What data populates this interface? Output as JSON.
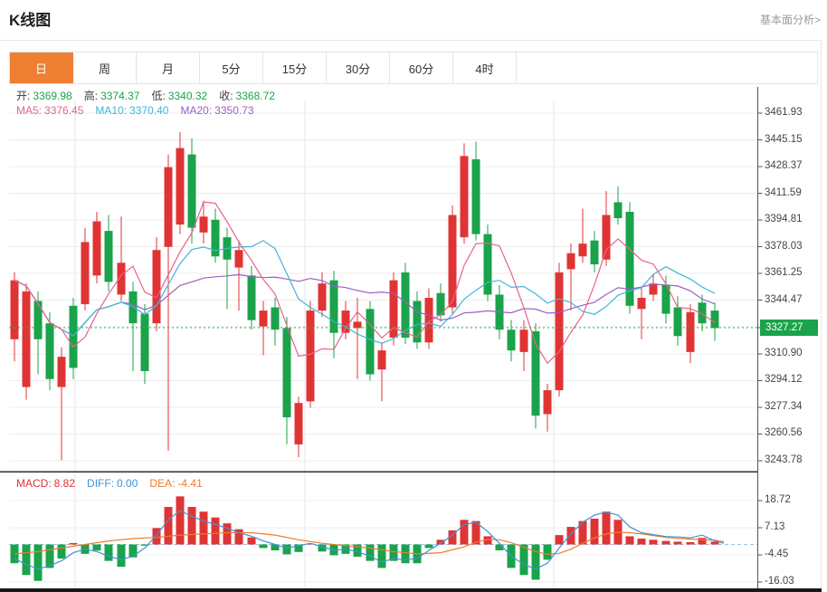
{
  "header": {
    "title": "K线图",
    "link": "基本面分析>"
  },
  "tabs": {
    "items": [
      "日",
      "周",
      "月",
      "5分",
      "15分",
      "30分",
      "60分",
      "4时"
    ],
    "active_index": 0
  },
  "ohlc": {
    "items": [
      {
        "label": "开:",
        "value": "3369.98"
      },
      {
        "label": "高:",
        "value": "3374.37"
      },
      {
        "label": "低:",
        "value": "3340.32"
      },
      {
        "label": "收:",
        "value": "3368.72"
      }
    ]
  },
  "ma": {
    "items": [
      {
        "label": "MA5:",
        "value": "3376.45",
        "color": "#e5638b"
      },
      {
        "label": "MA10:",
        "value": "3370.40",
        "color": "#3fb6d8"
      },
      {
        "label": "MA20:",
        "value": "3350.73",
        "color": "#9c5fc4"
      }
    ]
  },
  "macd_header": {
    "items": [
      {
        "label": "MACD:",
        "value": "8.82",
        "color": "#e03434"
      },
      {
        "label": "DIFF:",
        "value": "0.00",
        "color": "#4191d9"
      },
      {
        "label": "DEA:",
        "value": "-4.41",
        "color": "#ef7c2a"
      }
    ]
  },
  "current_price": "3327.27",
  "chart_data": {
    "type": "candlestick",
    "title": "K线图 daily candles with MA5/MA10/MA20 overlays and MACD panel",
    "price_axis": {
      "max": 3461.93,
      "min": 3243.78,
      "step": 16.78,
      "labels": [
        "3461.93",
        "3445.15",
        "3428.37",
        "3411.59",
        "3394.81",
        "3378.03",
        "3361.25",
        "3344.47",
        "3310.90",
        "3294.12",
        "3277.34",
        "3260.56",
        "3243.78"
      ]
    },
    "current_price": 3327.27,
    "candles": [
      [
        16,
        3357,
        3320,
        3362,
        3306,
        "r"
      ],
      [
        29,
        3350,
        3290,
        3355,
        3282,
        "r"
      ],
      [
        42,
        3344,
        3320,
        3350,
        3298,
        "g"
      ],
      [
        55,
        3330,
        3295,
        3337,
        3288,
        "g"
      ],
      [
        68,
        3309,
        3290,
        3315,
        3244,
        "r"
      ],
      [
        81,
        3341,
        3302,
        3346,
        3295,
        "g"
      ],
      [
        94,
        3381,
        3342,
        3390,
        3338,
        "r"
      ],
      [
        107,
        3394,
        3360,
        3400,
        3355,
        "r"
      ],
      [
        120,
        3388,
        3356,
        3398,
        3350,
        "g"
      ],
      [
        134,
        3368,
        3348,
        3397,
        3344,
        "r"
      ],
      [
        147,
        3350,
        3330,
        3356,
        3300,
        "g"
      ],
      [
        160,
        3336,
        3300,
        3342,
        3292,
        "g"
      ],
      [
        173,
        3376,
        3330,
        3384,
        3325,
        "r"
      ],
      [
        186,
        3428,
        3378,
        3436,
        3250,
        "r"
      ],
      [
        199,
        3440,
        3392,
        3450,
        3386,
        "r"
      ],
      [
        212,
        3436,
        3390,
        3446,
        3380,
        "g"
      ],
      [
        225,
        3397,
        3387,
        3407,
        3380,
        "r"
      ],
      [
        238,
        3395,
        3372,
        3402,
        3368,
        "g"
      ],
      [
        251,
        3384,
        3370,
        3390,
        3339,
        "g"
      ],
      [
        264,
        3376,
        3365,
        3382,
        3338,
        "r"
      ],
      [
        278,
        3360,
        3332,
        3366,
        3326,
        "g"
      ],
      [
        291,
        3338,
        3328,
        3344,
        3310,
        "r"
      ],
      [
        304,
        3340,
        3326,
        3346,
        3316,
        "g"
      ],
      [
        317,
        3327,
        3271,
        3334,
        3254,
        "g"
      ],
      [
        330,
        3280,
        3254,
        3284,
        3246,
        "r"
      ],
      [
        343,
        3338,
        3281,
        3344,
        3277,
        "r"
      ],
      [
        356,
        3355,
        3338,
        3362,
        3334,
        "r"
      ],
      [
        369,
        3357,
        3324,
        3363,
        3308,
        "g"
      ],
      [
        382,
        3338,
        3324,
        3344,
        3320,
        "r"
      ],
      [
        395,
        3331,
        3327,
        3346,
        3295,
        "r"
      ],
      [
        409,
        3339,
        3298,
        3344,
        3294,
        "g"
      ],
      [
        422,
        3313,
        3301,
        3318,
        3281,
        "r"
      ],
      [
        435,
        3357,
        3321,
        3362,
        3316,
        "r"
      ],
      [
        448,
        3362,
        3321,
        3368,
        3317,
        "g"
      ],
      [
        461,
        3344,
        3318,
        3350,
        3314,
        "g"
      ],
      [
        474,
        3346,
        3318,
        3352,
        3314,
        "r"
      ],
      [
        487,
        3349,
        3335,
        3355,
        3331,
        "g"
      ],
      [
        500,
        3398,
        3340,
        3404,
        3336,
        "r"
      ],
      [
        513,
        3435,
        3384,
        3443,
        3380,
        "r"
      ],
      [
        526,
        3433,
        3386,
        3444,
        3382,
        "g"
      ],
      [
        539,
        3386,
        3348,
        3392,
        3344,
        "g"
      ],
      [
        552,
        3348,
        3326,
        3354,
        3320,
        "g"
      ],
      [
        565,
        3326,
        3313,
        3332,
        3306,
        "g"
      ],
      [
        579,
        3326,
        3312,
        3332,
        3300,
        "r"
      ],
      [
        592,
        3325,
        3272,
        3330,
        3264,
        "g"
      ],
      [
        605,
        3288,
        3273,
        3292,
        3262,
        "r"
      ],
      [
        618,
        3362,
        3288,
        3368,
        3284,
        "r"
      ],
      [
        631,
        3374,
        3364,
        3380,
        3338,
        "r"
      ],
      [
        644,
        3380,
        3372,
        3402,
        3368,
        "r"
      ],
      [
        657,
        3382,
        3367,
        3388,
        3362,
        "g"
      ],
      [
        670,
        3398,
        3370,
        3413,
        3366,
        "r"
      ],
      [
        683,
        3406,
        3396,
        3416,
        3392,
        "g"
      ],
      [
        696,
        3400,
        3341,
        3406,
        3336,
        "g"
      ],
      [
        709,
        3346,
        3339,
        3352,
        3320,
        "r"
      ],
      [
        722,
        3355,
        3348,
        3361,
        3344,
        "r"
      ],
      [
        736,
        3354,
        3336,
        3360,
        3330,
        "g"
      ],
      [
        749,
        3340,
        3322,
        3347,
        3316,
        "g"
      ],
      [
        763,
        3337,
        3312,
        3342,
        3305,
        "r"
      ],
      [
        776,
        3343,
        3330,
        3348,
        3325,
        "g"
      ],
      [
        790,
        3338,
        3327,
        3343,
        3319,
        "g"
      ]
    ],
    "ma_windows": [
      {
        "n": 20,
        "color": "#9c5fc4"
      },
      {
        "n": 10,
        "color": "#3fb6d8"
      },
      {
        "n": 5,
        "color": "#e5638b"
      }
    ],
    "macd": {
      "axis_labels": [
        "18.72",
        "7.13",
        "-4.45",
        "-16.03"
      ],
      "bars": [
        [
          16,
          -8
        ],
        [
          29,
          -13
        ],
        [
          42,
          -15.5
        ],
        [
          55,
          -10
        ],
        [
          68,
          -6
        ],
        [
          81,
          0.6
        ],
        [
          94,
          -4
        ],
        [
          107,
          -2.6
        ],
        [
          120,
          -7
        ],
        [
          134,
          -9.5
        ],
        [
          147,
          -5.5
        ],
        [
          160,
          -0.5
        ],
        [
          173,
          7
        ],
        [
          186,
          16
        ],
        [
          199,
          20.5
        ],
        [
          212,
          16
        ],
        [
          225,
          14
        ],
        [
          238,
          11.5
        ],
        [
          251,
          9
        ],
        [
          264,
          6.5
        ],
        [
          278,
          3
        ],
        [
          291,
          -1.5
        ],
        [
          304,
          -2.5
        ],
        [
          317,
          -4.2
        ],
        [
          330,
          -3.2
        ],
        [
          343,
          0.4
        ],
        [
          356,
          -3
        ],
        [
          369,
          -4.6
        ],
        [
          382,
          -4
        ],
        [
          395,
          -5.2
        ],
        [
          409,
          -7
        ],
        [
          422,
          -10
        ],
        [
          435,
          -7
        ],
        [
          448,
          -8
        ],
        [
          461,
          -8
        ],
        [
          474,
          -1.5
        ],
        [
          487,
          2
        ],
        [
          500,
          6
        ],
        [
          513,
          10.5
        ],
        [
          526,
          10
        ],
        [
          539,
          3.5
        ],
        [
          552,
          -2.5
        ],
        [
          565,
          -10
        ],
        [
          579,
          -13
        ],
        [
          592,
          -15
        ],
        [
          605,
          -6.5
        ],
        [
          618,
          4
        ],
        [
          631,
          7.5
        ],
        [
          644,
          10
        ],
        [
          657,
          11
        ],
        [
          670,
          14
        ],
        [
          683,
          10.5
        ],
        [
          696,
          3.5
        ],
        [
          709,
          2.5
        ],
        [
          722,
          2
        ],
        [
          736,
          1.5
        ],
        [
          749,
          1.2
        ],
        [
          763,
          1
        ],
        [
          776,
          2.8
        ],
        [
          790,
          1.2
        ]
      ],
      "diff": [
        [
          16,
          -6
        ],
        [
          29,
          -8.5
        ],
        [
          42,
          -10.5
        ],
        [
          55,
          -9
        ],
        [
          68,
          -7
        ],
        [
          81,
          -3.5
        ],
        [
          94,
          -2
        ],
        [
          107,
          -3
        ],
        [
          120,
          -5
        ],
        [
          134,
          -6.5
        ],
        [
          147,
          -5
        ],
        [
          160,
          -1.5
        ],
        [
          173,
          4
        ],
        [
          186,
          10.5
        ],
        [
          199,
          14.5
        ],
        [
          212,
          12
        ],
        [
          225,
          10
        ],
        [
          238,
          8.5
        ],
        [
          251,
          7
        ],
        [
          264,
          5
        ],
        [
          278,
          3.5
        ],
        [
          291,
          1.5
        ],
        [
          304,
          0
        ],
        [
          317,
          -1.5
        ],
        [
          330,
          -0.5
        ],
        [
          343,
          0.5
        ],
        [
          356,
          -1
        ],
        [
          369,
          -2.5
        ],
        [
          382,
          -2
        ],
        [
          395,
          -3
        ],
        [
          409,
          -5
        ],
        [
          422,
          -7.5
        ],
        [
          435,
          -6
        ],
        [
          448,
          -6.5
        ],
        [
          461,
          -6
        ],
        [
          474,
          -2.5
        ],
        [
          487,
          0.5
        ],
        [
          500,
          4
        ],
        [
          513,
          8.5
        ],
        [
          526,
          9.5
        ],
        [
          539,
          5.5
        ],
        [
          552,
          0.5
        ],
        [
          565,
          -5
        ],
        [
          579,
          -8.5
        ],
        [
          592,
          -10.5
        ],
        [
          605,
          -8
        ],
        [
          618,
          -1.5
        ],
        [
          631,
          4.5
        ],
        [
          644,
          9.5
        ],
        [
          657,
          12.5
        ],
        [
          670,
          13.8
        ],
        [
          683,
          12.5
        ],
        [
          696,
          7.5
        ],
        [
          709,
          5
        ],
        [
          722,
          4.2
        ],
        [
          736,
          3.4
        ],
        [
          749,
          3.2
        ],
        [
          763,
          2.8
        ],
        [
          776,
          4
        ],
        [
          790,
          1.5
        ],
        [
          800,
          0.5
        ]
      ],
      "dea": [
        [
          16,
          -4
        ],
        [
          42,
          -3
        ],
        [
          68,
          -1.5
        ],
        [
          94,
          0
        ],
        [
          120,
          1.5
        ],
        [
          147,
          2.5
        ],
        [
          173,
          3
        ],
        [
          199,
          4
        ],
        [
          225,
          4.5
        ],
        [
          251,
          5
        ],
        [
          278,
          5
        ],
        [
          304,
          4
        ],
        [
          330,
          2
        ],
        [
          356,
          0.5
        ],
        [
          382,
          -0.5
        ],
        [
          409,
          -1.5
        ],
        [
          435,
          -3
        ],
        [
          461,
          -4
        ],
        [
          487,
          -3.5
        ],
        [
          513,
          -1
        ],
        [
          526,
          1
        ],
        [
          539,
          2.2
        ],
        [
          552,
          2
        ],
        [
          565,
          0.8
        ],
        [
          579,
          -1.2
        ],
        [
          592,
          -3
        ],
        [
          605,
          -4.2
        ],
        [
          618,
          -3.8
        ],
        [
          631,
          -2
        ],
        [
          644,
          0.5
        ],
        [
          657,
          2.8
        ],
        [
          670,
          4.5
        ],
        [
          683,
          5.2
        ],
        [
          696,
          5
        ],
        [
          709,
          4.5
        ],
        [
          722,
          3.8
        ],
        [
          736,
          3
        ],
        [
          749,
          2.6
        ],
        [
          763,
          2.3
        ],
        [
          776,
          2.1
        ],
        [
          790,
          1.8
        ],
        [
          800,
          1.2
        ]
      ]
    },
    "colors": {
      "up": "#e03434",
      "down": "#1aa34a",
      "badge": "#1aa34a",
      "dotted_line": "#2fae4e",
      "grid": "#ececec",
      "vgrid": "#e7e7e7",
      "axis": "#555555",
      "divider": "#2f2f2f",
      "zero_dash": "#9fc3e0",
      "diff_line": "#4191d9",
      "dea_line": "#ef7c2a"
    }
  }
}
